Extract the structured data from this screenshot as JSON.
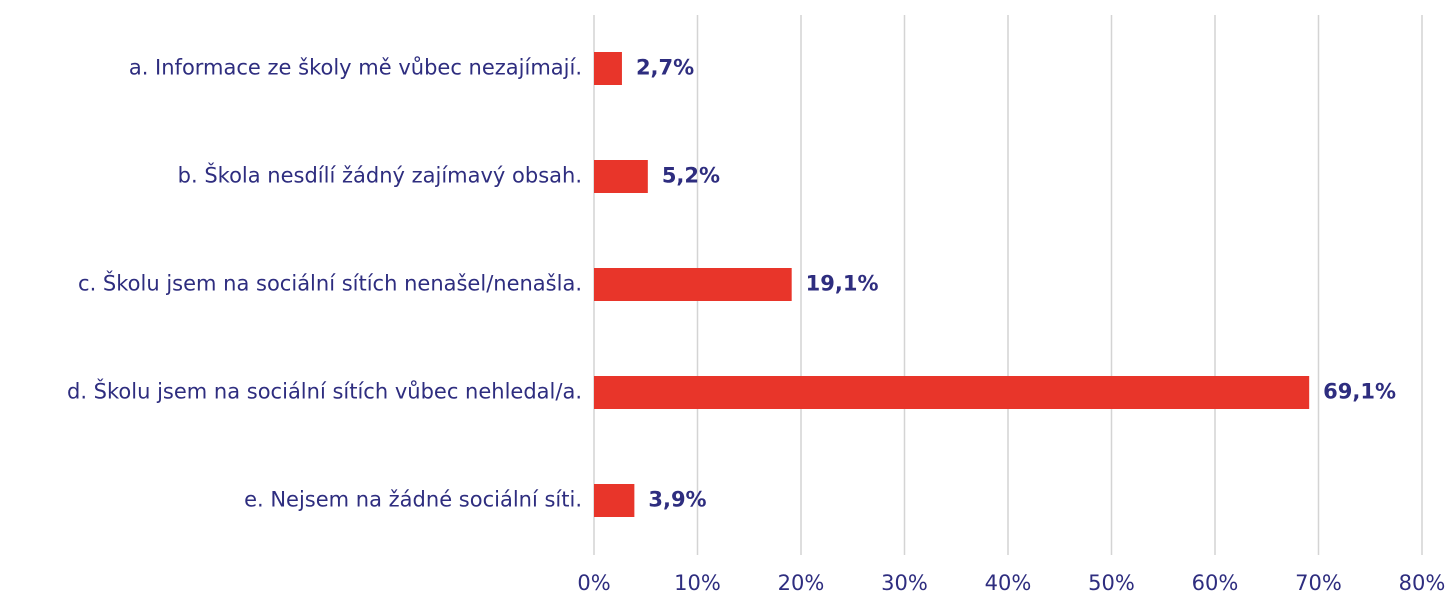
{
  "chart_data": {
    "type": "bar",
    "orientation": "horizontal",
    "categories": [
      "a. Informace ze školy mě vůbec nezajímají.",
      "b. Škola nesdílí žádný zajímavý obsah.",
      "c. Školu jsem na sociální sítích nenašel/nenašla.",
      "d. Školu jsem na sociální sítích vůbec nehledal/a.",
      "e. Nejsem na žádné sociální síti."
    ],
    "values": [
      2.7,
      5.2,
      19.1,
      69.1,
      3.9
    ],
    "value_labels": [
      "2,7%",
      "5,2%",
      "19,1%",
      "69,1%",
      "3,9%"
    ],
    "color": "#e8352a",
    "xlim": [
      0,
      80
    ],
    "xticks": [
      {
        "value": 0,
        "label": "0%"
      },
      {
        "value": 10,
        "label": "10%"
      },
      {
        "value": 20,
        "label": "20%"
      },
      {
        "value": 30,
        "label": "30%"
      },
      {
        "value": 40,
        "label": "40%"
      },
      {
        "value": 50,
        "label": "50%"
      },
      {
        "value": 60,
        "label": "60%"
      },
      {
        "value": 70,
        "label": "70%"
      },
      {
        "value": 80,
        "label": "80%"
      }
    ],
    "grid": true
  }
}
